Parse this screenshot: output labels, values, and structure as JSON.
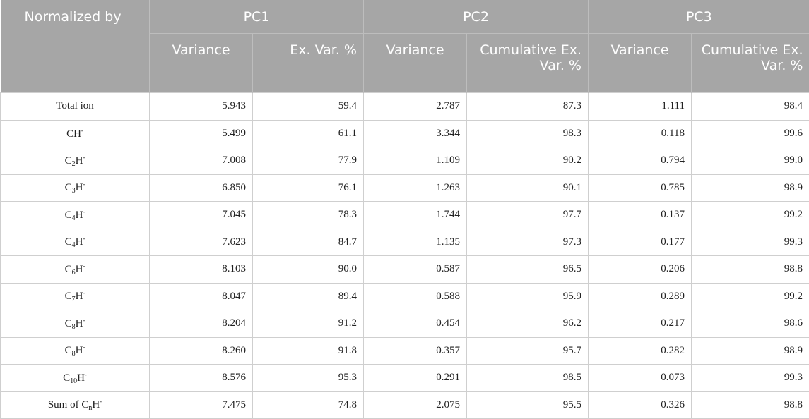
{
  "header": {
    "row1": [
      "Normalized by",
      "PC1",
      "PC2",
      "PC3"
    ],
    "row2": [
      "Variance",
      "Ex. Var. %",
      "Variance",
      "Cumulative Ex. Var. %",
      "Variance",
      "Cumulative Ex. Var. %"
    ]
  },
  "rows": [
    {
      "label": "Total ion",
      "base": "Total ion",
      "sub": "",
      "sup": "",
      "values": [
        "5.943",
        "59.4",
        "2.787",
        "87.3",
        "1.111",
        "98.4"
      ]
    },
    {
      "label": "CH-",
      "base": "CH",
      "sub": "",
      "sup": "-",
      "values": [
        "5.499",
        "61.1",
        "3.344",
        "98.3",
        "0.118",
        "99.6"
      ]
    },
    {
      "label": "C2H-",
      "base": "C",
      "sub": "2",
      "sup": "-",
      "values": [
        "7.008",
        "77.9",
        "1.109",
        "90.2",
        "0.794",
        "99.0"
      ]
    },
    {
      "label": "C3H-",
      "base": "C",
      "sub": "3",
      "sup": "-",
      "values": [
        "6.850",
        "76.1",
        "1.263",
        "90.1",
        "0.785",
        "98.9"
      ]
    },
    {
      "label": "C4H-",
      "base": "C",
      "sub": "4",
      "sup": "-",
      "values": [
        "7.045",
        "78.3",
        "1.744",
        "97.7",
        "0.137",
        "99.2"
      ]
    },
    {
      "label": "C4H-",
      "base": "C",
      "sub": "4",
      "sup": "-",
      "values": [
        "7.623",
        "84.7",
        "1.135",
        "97.3",
        "0.177",
        "99.3"
      ]
    },
    {
      "label": "C6H-",
      "base": "C",
      "sub": "6",
      "sup": "-",
      "values": [
        "8.103",
        "90.0",
        "0.587",
        "96.5",
        "0.206",
        "98.8"
      ]
    },
    {
      "label": "C7H-",
      "base": "C",
      "sub": "7",
      "sup": "-",
      "values": [
        "8.047",
        "89.4",
        "0.588",
        "95.9",
        "0.289",
        "99.2"
      ]
    },
    {
      "label": "C8H-",
      "base": "C",
      "sub": "8",
      "sup": "-",
      "values": [
        "8.204",
        "91.2",
        "0.454",
        "96.2",
        "0.217",
        "98.6"
      ]
    },
    {
      "label": "C8H-",
      "base": "C",
      "sub": "8",
      "sup": "-",
      "values": [
        "8.260",
        "91.8",
        "0.357",
        "95.7",
        "0.282",
        "98.9"
      ]
    },
    {
      "label": "C10H-",
      "base": "C",
      "sub": "10",
      "sup": "-",
      "values": [
        "8.576",
        "95.3",
        "0.291",
        "98.5",
        "0.073",
        "99.3"
      ]
    },
    {
      "label": "Sum of CnH-",
      "base": "Sum of C",
      "sub": "n",
      "sup": "-",
      "values": [
        "7.475",
        "74.8",
        "2.075",
        "95.5",
        "0.326",
        "98.8"
      ]
    }
  ]
}
